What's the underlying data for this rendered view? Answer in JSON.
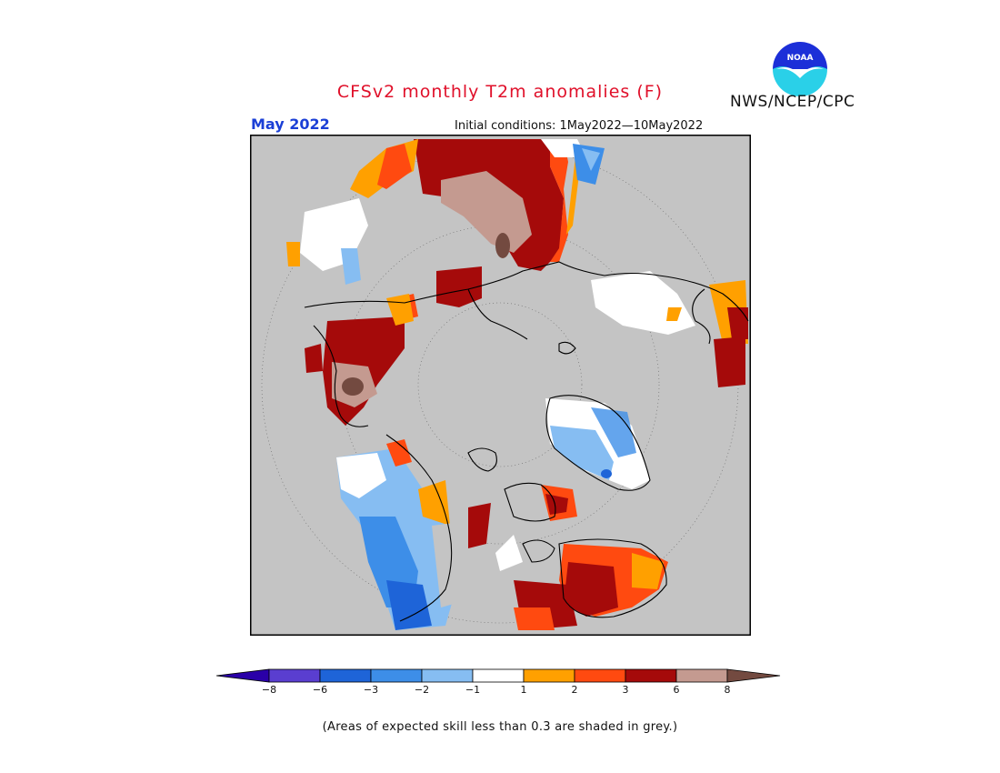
{
  "header": {
    "title": "CFSv2 monthly T2m anomalies (F)",
    "month": "May 2022",
    "initial_conditions": "Initial conditions: 1May2022—10May2022",
    "organization": "NWS/NCEP/CPC",
    "logo_text": "NOAA"
  },
  "map": {
    "projection": "north-polar-stereographic",
    "grey_meaning": "low skill",
    "colors": {
      "background": "#c4c4c4",
      "frame": "#000000",
      "land": "#c4c4c4"
    }
  },
  "legend": {
    "bins": [
      {
        "color": "#2a00a8"
      },
      {
        "color": "#5a3ed0"
      },
      {
        "color": "#1e64d8"
      },
      {
        "color": "#3d8ee8"
      },
      {
        "color": "#86bdf2"
      },
      {
        "color": "#ffffff"
      },
      {
        "color": "#ffa000"
      },
      {
        "color": "#ff4a10"
      },
      {
        "color": "#a50a0a"
      },
      {
        "color": "#c49a90"
      },
      {
        "color": "#734a40"
      }
    ],
    "ticks": [
      "−8",
      "−6",
      "−3",
      "−2",
      "−1",
      "1",
      "2",
      "3",
      "6",
      "8"
    ]
  },
  "footnote": "(Areas of expected skill less than 0.3 are shaded in grey.)"
}
